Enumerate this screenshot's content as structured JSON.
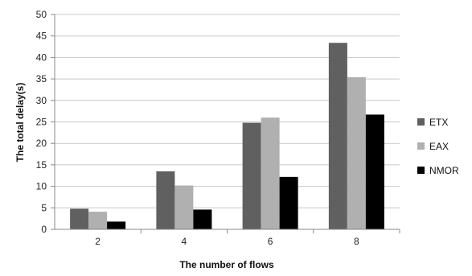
{
  "chart_data": {
    "type": "bar",
    "title": "",
    "xlabel": "The number of flows",
    "ylabel": "The total delay(s)",
    "categories": [
      "2",
      "4",
      "6",
      "8"
    ],
    "series": [
      {
        "name": "ETX",
        "color": "#606060",
        "values": [
          4.8,
          13.5,
          24.8,
          43.4
        ]
      },
      {
        "name": "EAX",
        "color": "#b0b0b0",
        "values": [
          4.1,
          10.2,
          26.0,
          35.4
        ]
      },
      {
        "name": "NMOR",
        "color": "#000000",
        "values": [
          1.8,
          4.6,
          12.2,
          26.7
        ]
      }
    ],
    "ylim": [
      0,
      50
    ],
    "yticks": [
      "0",
      "5",
      "10",
      "15",
      "20",
      "25",
      "30",
      "35",
      "40",
      "45",
      "50"
    ],
    "grid": true,
    "legend_position": "right"
  }
}
